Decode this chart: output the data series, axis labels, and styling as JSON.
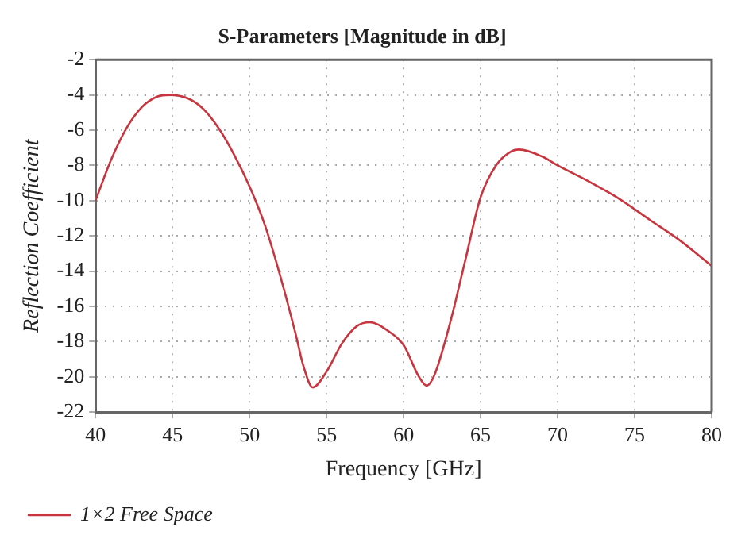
{
  "chart_data": {
    "type": "line",
    "title": "S-Parameters [Magnitude in dB]",
    "xlabel": "Frequency [GHz]",
    "ylabel": "Reflection Coefficient",
    "x": [
      40,
      41,
      42,
      43,
      44,
      44.8,
      46,
      47,
      48,
      49,
      50,
      51,
      52,
      53,
      53.5,
      54.1,
      55,
      56,
      57,
      57.8,
      59,
      60,
      61,
      61.5,
      62,
      63,
      64,
      65,
      66,
      67,
      67.5,
      69,
      70,
      72,
      74,
      76,
      78,
      80
    ],
    "series": [
      {
        "name": "1×2 Free Space",
        "color": "#c8353f",
        "values": [
          -10,
          -7.7,
          -5.9,
          -4.7,
          -4.1,
          -4.0,
          -4.2,
          -4.8,
          -5.9,
          -7.4,
          -9.2,
          -11.4,
          -14.3,
          -17.6,
          -19.4,
          -20.6,
          -19.7,
          -18.1,
          -17.1,
          -16.9,
          -17.4,
          -18.2,
          -20.0,
          -20.5,
          -19.9,
          -17.0,
          -13.4,
          -9.8,
          -8.0,
          -7.2,
          -7.1,
          -7.5,
          -8.0,
          -8.9,
          -9.9,
          -11.1,
          -12.3,
          -13.7
        ]
      }
    ],
    "xlim": [
      40,
      80
    ],
    "xticks": [
      40,
      45,
      50,
      55,
      60,
      65,
      70,
      75,
      80
    ],
    "ylim": [
      -22,
      -2
    ],
    "yticks": [
      -22,
      -20,
      -18,
      -16,
      -14,
      -12,
      -10,
      -8,
      -6,
      -4,
      -2
    ],
    "grid": true,
    "legend": "bottom left",
    "marker": "none",
    "line_style": "solid"
  }
}
